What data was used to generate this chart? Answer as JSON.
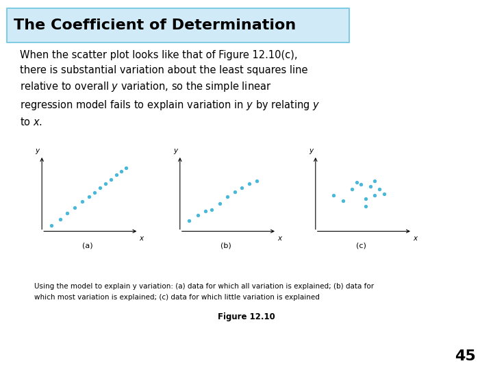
{
  "title": "The Coefficient of Determination",
  "title_bg_color": "#d0eaf8",
  "title_border_color": "#6bc4e0",
  "title_text_color": "#000000",
  "body_text": "When the scatter plot looks like that of Figure 12.10(c),\nthere is substantial variation about the least squares line\nrelative to overall $y$ variation, so the simple linear\nregression model fails to explain variation in $y$ by relating $y$\nto $x$.",
  "caption_line1": "Using the model to explain y variation: (a) data for which all variation is explained; (b) data for",
  "caption_line2": "which most variation is explained; (c) data for which little variation is explained",
  "figure_label": "Figure 12.10",
  "page_number": "45",
  "dot_color": "#4ab8d8",
  "scatter_a": {
    "x": [
      0.1,
      0.2,
      0.28,
      0.36,
      0.44,
      0.52,
      0.58,
      0.64,
      0.7,
      0.76,
      0.82,
      0.87,
      0.92
    ],
    "y": [
      0.08,
      0.17,
      0.25,
      0.33,
      0.41,
      0.48,
      0.54,
      0.6,
      0.66,
      0.72,
      0.78,
      0.83,
      0.88
    ]
  },
  "scatter_b": {
    "x": [
      0.1,
      0.2,
      0.28,
      0.35,
      0.44,
      0.52,
      0.6,
      0.68,
      0.76,
      0.84
    ],
    "y": [
      0.15,
      0.22,
      0.28,
      0.3,
      0.38,
      0.48,
      0.55,
      0.6,
      0.66,
      0.7
    ]
  },
  "scatter_c": {
    "x": [
      0.2,
      0.3,
      0.4,
      0.5,
      0.55,
      0.6,
      0.65,
      0.7,
      0.75,
      0.55,
      0.65,
      0.45
    ],
    "y": [
      0.5,
      0.42,
      0.58,
      0.65,
      0.45,
      0.62,
      0.7,
      0.58,
      0.52,
      0.35,
      0.5,
      0.68
    ]
  },
  "background_color": "#ffffff"
}
